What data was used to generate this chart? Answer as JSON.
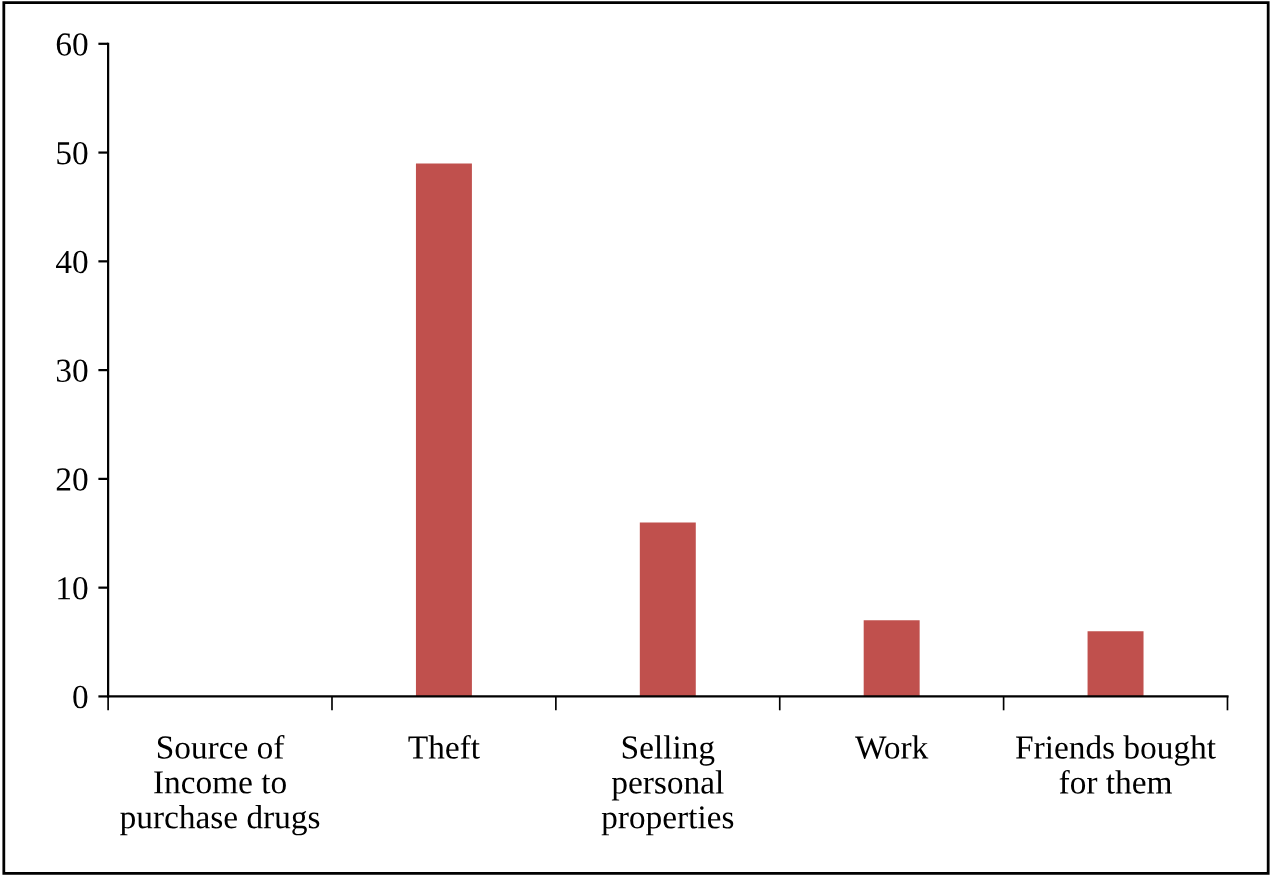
{
  "chart_data": {
    "type": "bar",
    "categories": [
      "Source of\nIncome to\npurchase drugs",
      "Theft",
      "Selling\npersonal\nproperties",
      "Work",
      "Friends bought\nfor them"
    ],
    "values": [
      null,
      49,
      16,
      7,
      6
    ],
    "color": "#c0504d",
    "ylim": [
      0,
      60
    ],
    "yticks": [
      0,
      10,
      20,
      30,
      40,
      50,
      60
    ],
    "grid": false,
    "legend": false
  }
}
